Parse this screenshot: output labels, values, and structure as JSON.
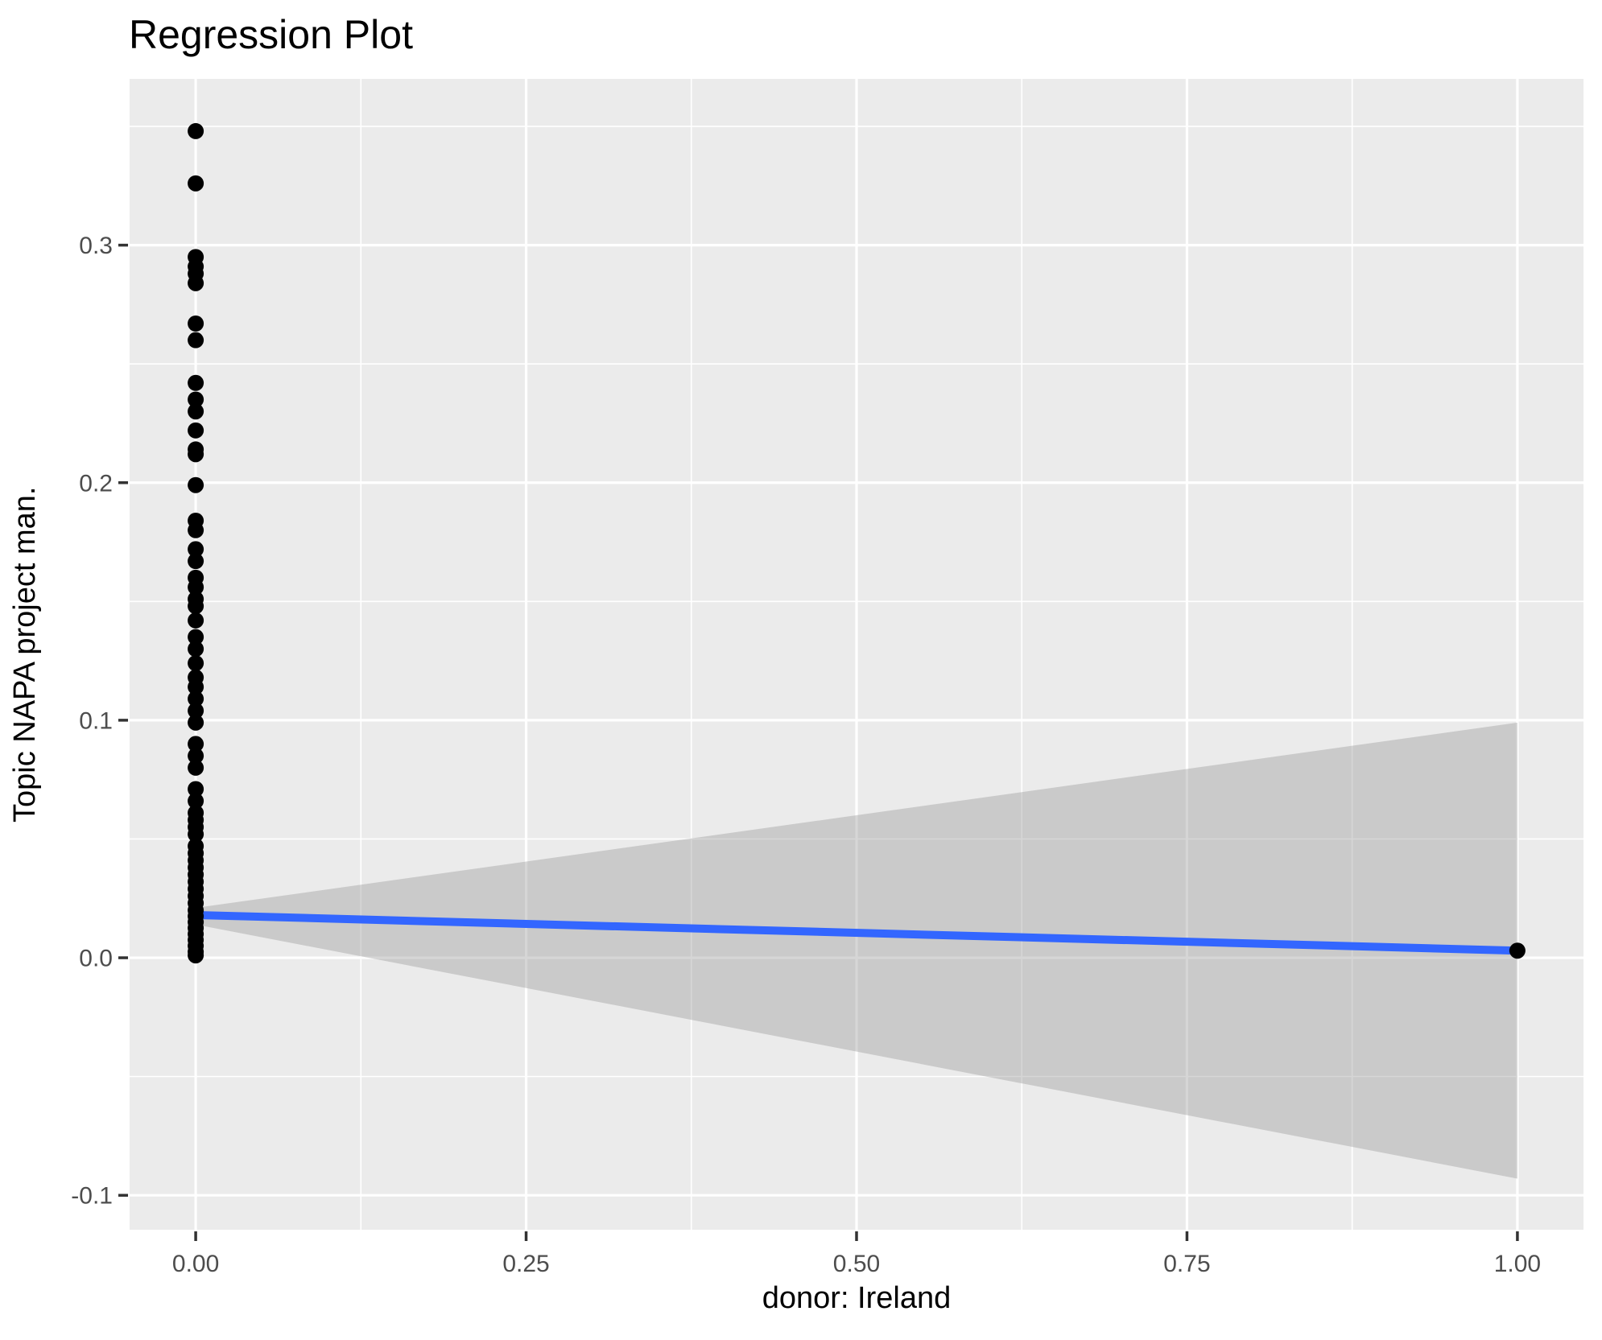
{
  "figure": {
    "title": "Regression Plot"
  },
  "axes": {
    "x_title": "donor: Ireland",
    "y_title": "Topic NAPA project man."
  },
  "chart_data": {
    "type": "scatter",
    "title": "Regression Plot",
    "xlabel": "donor: Ireland",
    "ylabel": "Topic NAPA project man.",
    "xlim": [
      -0.05,
      1.05
    ],
    "ylim": [
      -0.1145,
      0.37
    ],
    "grid": true,
    "legend": false,
    "x_ticks": {
      "values": [
        0,
        0.25,
        0.5,
        0.75,
        1
      ],
      "labels": [
        "0.00",
        "0.25",
        "0.50",
        "0.75",
        "1.00"
      ]
    },
    "x_minor_ticks": [
      0.125,
      0.375,
      0.625,
      0.875
    ],
    "y_ticks": {
      "values": [
        -0.1,
        0,
        0.1,
        0.2,
        0.3
      ],
      "labels": [
        "-0.1",
        "0.0",
        "0.1",
        "0.2",
        "0.3"
      ]
    },
    "y_minor_ticks": [
      -0.05,
      0.05,
      0.15,
      0.25,
      0.35
    ],
    "colors": {
      "panel_bg": "#EBEBEB",
      "grid": "#FFFFFF",
      "points": "#000000",
      "regression_line": "#3366FF",
      "ribbon": "#999999",
      "ribbon_opacity": 0.4,
      "tick_marks": "#333333",
      "tick_labels": "#4D4D4D"
    },
    "point_radius": 10,
    "line_width": 10,
    "series": [
      {
        "name": "observations-donor-0",
        "type": "points",
        "x": 0,
        "y": [
          0.348,
          0.326,
          0.295,
          0.291,
          0.288,
          0.284,
          0.267,
          0.26,
          0.242,
          0.235,
          0.23,
          0.222,
          0.214,
          0.212,
          0.199,
          0.184,
          0.18,
          0.172,
          0.167,
          0.16,
          0.156,
          0.151,
          0.148,
          0.142,
          0.135,
          0.13,
          0.124,
          0.118,
          0.114,
          0.109,
          0.104,
          0.099,
          0.09,
          0.085,
          0.08,
          0.071,
          0.066,
          0.061,
          0.058,
          0.055,
          0.052,
          0.047,
          0.044,
          0.041,
          0.038,
          0.035,
          0.032,
          0.029,
          0.026,
          0.023,
          0.02,
          0.0175,
          0.015,
          0.0125,
          0.01,
          0.0075,
          0.005,
          0.0025,
          0.001
        ]
      },
      {
        "name": "observations-donor-1",
        "type": "points",
        "x": 1,
        "y": [
          0.003
        ]
      },
      {
        "name": "confidence-band",
        "type": "ribbon",
        "x": [
          0,
          1
        ],
        "upper": [
          0.021,
          0.099
        ],
        "lower": [
          0.014,
          -0.093
        ]
      },
      {
        "name": "regression-line",
        "type": "line",
        "x": [
          0,
          1
        ],
        "y": [
          0.018,
          0.003
        ]
      }
    ]
  }
}
